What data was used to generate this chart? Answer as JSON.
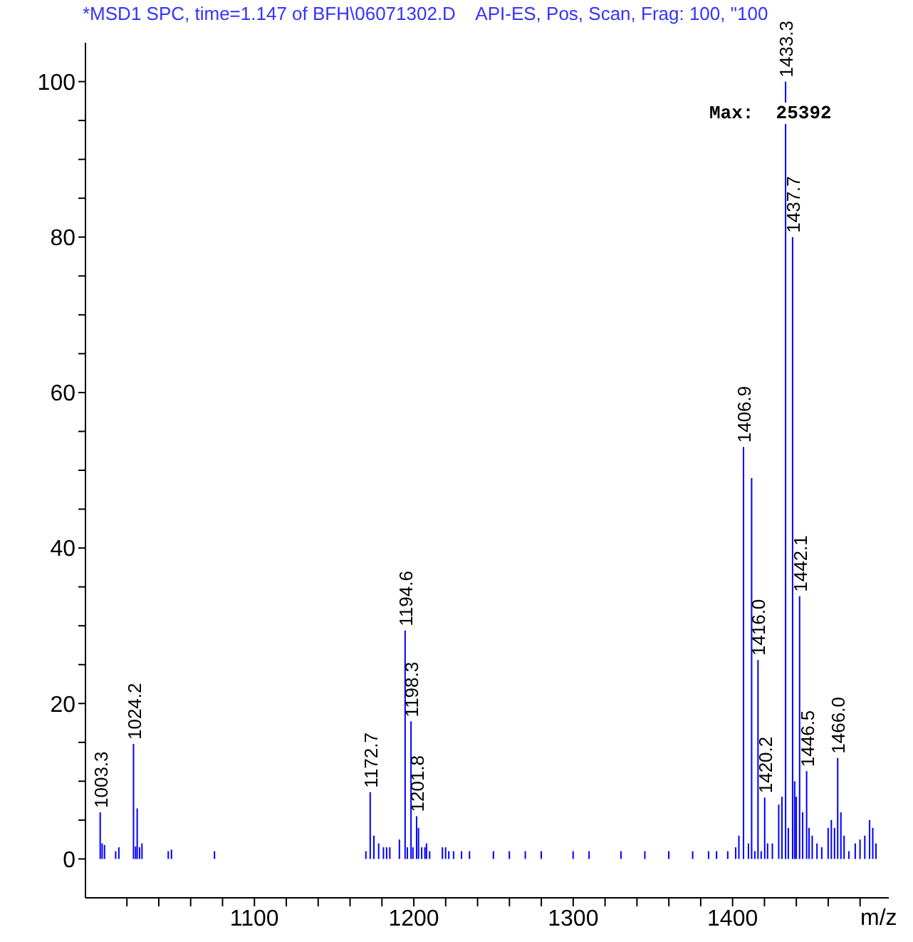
{
  "chart_data": {
    "type": "bar",
    "title": "*MSD1 SPC, time=1.147 of BFH\\06071302.D    API-ES, Pos, Scan, Frag: 100, \"100",
    "xlabel": "m/z",
    "annotations": [
      "Max:  25392",
      {
        "text": "1003.3",
        "x": 1003.3,
        "y": 6
      },
      {
        "text": "1024.2",
        "x": 1024.2,
        "y": 14.8
      },
      {
        "text": "1172.7",
        "x": 1172.7,
        "y": 8.6
      },
      {
        "text": "1194.6",
        "x": 1194.6,
        "y": 29.4
      },
      {
        "text": "1198.3",
        "x": 1198.3,
        "y": 17.7
      },
      {
        "text": "1201.8",
        "x": 1201.8,
        "y": 5.5
      },
      {
        "text": "1406.9",
        "x": 1406.9,
        "y": 53
      },
      {
        "text": "1416.0",
        "x": 1416.0,
        "y": 25.6
      },
      {
        "text": "1420.2",
        "x": 1420.2,
        "y": 7.9
      },
      {
        "text": "1433.3",
        "x": 1433.3,
        "y": 100
      },
      {
        "text": "1437.7",
        "x": 1437.7,
        "y": 80
      },
      {
        "text": "1442.1",
        "x": 1442.1,
        "y": 33.8
      },
      {
        "text": "1446.5",
        "x": 1446.5,
        "y": 11.3
      },
      {
        "text": "1466.0",
        "x": 1466.0,
        "y": 13
      }
    ],
    "color": "#0000ff",
    "x": [
      1003.3,
      1004.5,
      1006,
      1013,
      1015,
      1024.2,
      1025.5,
      1026.5,
      1028,
      1029.5,
      1046,
      1048,
      1075,
      1170,
      1172.7,
      1175,
      1178,
      1181,
      1183,
      1185,
      1191,
      1194.6,
      1196,
      1198.3,
      1199.5,
      1201.8,
      1203,
      1205,
      1207,
      1208,
      1210,
      1218,
      1220,
      1222,
      1225,
      1230,
      1235,
      1250,
      1260,
      1270,
      1280,
      1300,
      1310,
      1330,
      1345,
      1360,
      1375,
      1385,
      1390,
      1397,
      1402,
      1404,
      1406.9,
      1410,
      1412,
      1414,
      1416.0,
      1418,
      1420.2,
      1422,
      1425,
      1429,
      1431,
      1433.3,
      1435,
      1437.7,
      1439,
      1440,
      1442.1,
      1444,
      1446.5,
      1448,
      1450,
      1453,
      1456,
      1460,
      1462,
      1464,
      1466.0,
      1468,
      1470,
      1473,
      1477,
      1480,
      1483,
      1486,
      1488,
      1490
    ],
    "values": [
      6,
      2,
      1.8,
      1,
      1.5,
      14.8,
      1.6,
      6.5,
      1.5,
      2,
      1,
      1.2,
      1,
      1,
      8.6,
      3,
      2,
      1.5,
      1.5,
      1.5,
      2.5,
      29.4,
      1.5,
      17.7,
      1.5,
      5.5,
      4,
      1.5,
      1.5,
      2,
      1,
      1.5,
      1.5,
      1,
      1,
      1,
      1,
      1,
      1,
      1,
      1,
      1,
      1,
      1,
      1,
      1,
      1,
      1,
      1,
      1,
      1.5,
      3,
      53,
      2,
      49,
      1,
      25.6,
      1,
      7.9,
      2,
      2,
      7,
      8,
      100,
      4,
      80,
      10,
      8,
      33.8,
      6,
      11.3,
      4,
      3,
      2,
      1.5,
      4,
      5,
      4,
      13,
      6,
      3,
      1,
      2,
      2.5,
      3,
      5,
      4,
      2
    ],
    "xlim": [
      994,
      1498
    ],
    "xticks": [
      {
        "value": 1020,
        "label": null
      },
      {
        "value": 1040,
        "label": null
      },
      {
        "value": 1060,
        "label": null
      },
      {
        "value": 1080,
        "label": null
      },
      1100,
      {
        "value": 1120,
        "label": null
      },
      {
        "value": 1140,
        "label": null
      },
      {
        "value": 1160,
        "label": null
      },
      {
        "value": 1180,
        "label": null
      },
      1200,
      {
        "value": 1220,
        "label": null
      },
      {
        "value": 1240,
        "label": null
      },
      {
        "value": 1260,
        "label": null
      },
      {
        "value": 1280,
        "label": null
      },
      1300,
      {
        "value": 1320,
        "label": null
      },
      {
        "value": 1340,
        "label": null
      },
      {
        "value": 1360,
        "label": null
      },
      {
        "value": 1380,
        "label": null
      },
      1400,
      {
        "value": 1420,
        "label": null
      },
      {
        "value": 1440,
        "label": null
      },
      {
        "value": 1460,
        "label": null
      },
      {
        "value": 1480,
        "label": null
      }
    ],
    "ylim": [
      -5,
      105
    ],
    "yticks": [
      0,
      {
        "value": 5,
        "label": null
      },
      {
        "value": 10,
        "label": null
      },
      {
        "value": 15,
        "label": null
      },
      20,
      {
        "value": 25,
        "label": null
      },
      {
        "value": 30,
        "label": null
      },
      {
        "value": 35,
        "label": null
      },
      40,
      {
        "value": 45,
        "label": null
      },
      {
        "value": 50,
        "label": null
      },
      {
        "value": 55,
        "label": null
      },
      60,
      {
        "value": 65,
        "label": null
      },
      {
        "value": 70,
        "label": null
      },
      {
        "value": 75,
        "label": null
      },
      80,
      {
        "value": 85,
        "label": null
      },
      {
        "value": 90,
        "label": null
      },
      {
        "value": 95,
        "label": null
      },
      100
    ],
    "grid": false,
    "legend": false
  }
}
